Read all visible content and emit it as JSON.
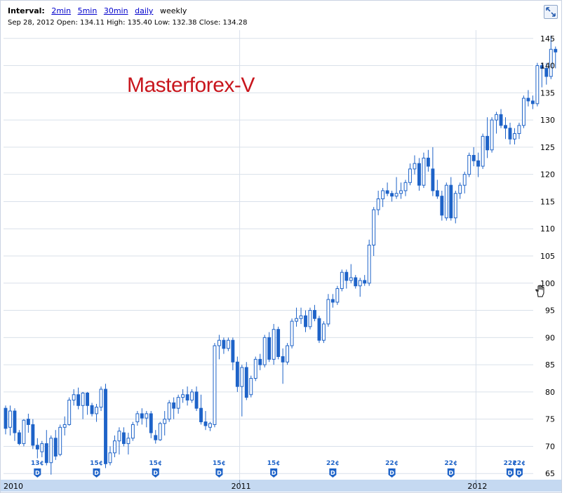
{
  "header": {
    "interval_label": "Interval:",
    "intervals": [
      "2min",
      "5min",
      "30min",
      "daily"
    ],
    "current_interval": "weekly",
    "ohlc_text": "Sep 28, 2012 Open: 134.11 High: 135.40 Low: 132.38 Close: 134.28"
  },
  "watermark": "Masterforex-V",
  "icons": {
    "expand": "expand-icon",
    "cursor": "hand-cursor-icon",
    "dividend": "dividend-marker-icon"
  },
  "colors": {
    "candle": "#1e63c8",
    "grid": "#d9e0ea",
    "watermark": "#c8161d",
    "axis_band": "#c5d9f1",
    "marker_text": "#1e63c8"
  },
  "chart_data": {
    "type": "candlestick",
    "title": "",
    "ylim": [
      64,
      146
    ],
    "y_ticks": [
      65,
      70,
      75,
      80,
      85,
      90,
      95,
      100,
      105,
      110,
      115,
      120,
      125,
      130,
      135,
      140,
      145
    ],
    "x_labels": [
      "2010",
      "2011",
      "2012"
    ],
    "dividend_markers": [
      {
        "label": "13¢",
        "week": 7
      },
      {
        "label": "15¢",
        "week": 20
      },
      {
        "label": "15¢",
        "week": 33
      },
      {
        "label": "15¢",
        "week": 47
      },
      {
        "label": "15¢",
        "week": 59
      },
      {
        "label": "22¢",
        "week": 72
      },
      {
        "label": "22¢",
        "week": 85
      },
      {
        "label": "22¢",
        "week": 98
      },
      {
        "label": "22¢",
        "week": 111
      },
      {
        "label": "22¢",
        "week": 113
      }
    ],
    "candles": [
      [
        77,
        77.5,
        72.2,
        73.3
      ],
      [
        73.5,
        77.5,
        72.0,
        76.5
      ],
      [
        76.5,
        77.0,
        71.0,
        72.5
      ],
      [
        72.5,
        73.0,
        70.2,
        70.5
      ],
      [
        70.5,
        75.0,
        70.0,
        74.8
      ],
      [
        75.0,
        76.0,
        72.5,
        74.0
      ],
      [
        74.0,
        75.0,
        69.5,
        70.2
      ],
      [
        70.2,
        71.5,
        67.8,
        69.5
      ],
      [
        69.0,
        71.0,
        68.0,
        70.5
      ],
      [
        70.5,
        73.0,
        66.5,
        67.0
      ],
      [
        67.0,
        72.0,
        64.8,
        71.5
      ],
      [
        71.5,
        73.0,
        67.5,
        68.2
      ],
      [
        68.5,
        74.0,
        68.2,
        73.5
      ],
      [
        73.5,
        75.5,
        72.0,
        74.0
      ],
      [
        74.0,
        79.0,
        73.8,
        78.5
      ],
      [
        78.5,
        80.5,
        77.5,
        79.5
      ],
      [
        79.5,
        80.8,
        76.8,
        77.5
      ],
      [
        77.5,
        80.0,
        75.0,
        79.8
      ],
      [
        79.8,
        80.0,
        75.8,
        77.5
      ],
      [
        77.5,
        78.0,
        75.5,
        76.0
      ],
      [
        76.0,
        77.8,
        74.5,
        77.2
      ],
      [
        77.2,
        81.0,
        76.5,
        80.5
      ],
      [
        80.5,
        81.5,
        66.0,
        66.8
      ],
      [
        67.0,
        70.0,
        66.5,
        68.8
      ],
      [
        68.8,
        72.0,
        68.0,
        71.0
      ],
      [
        71.0,
        73.5,
        68.5,
        72.8
      ],
      [
        72.5,
        73.5,
        70.0,
        70.5
      ],
      [
        70.5,
        72.5,
        68.5,
        71.5
      ],
      [
        71.5,
        74.5,
        71.0,
        74.0
      ],
      [
        74.5,
        76.5,
        73.8,
        76.0
      ],
      [
        76.0,
        77.0,
        74.0,
        75.2
      ],
      [
        75.2,
        76.5,
        73.5,
        76.0
      ],
      [
        76.0,
        76.5,
        71.5,
        72.5
      ],
      [
        72.0,
        73.0,
        70.5,
        71.2
      ],
      [
        71.2,
        74.5,
        71.0,
        74.2
      ],
      [
        74.2,
        76.5,
        72.0,
        75.0
      ],
      [
        75.0,
        78.5,
        74.5,
        78.0
      ],
      [
        78.0,
        79.0,
        75.0,
        77.0
      ],
      [
        77.0,
        79.5,
        76.0,
        79.0
      ],
      [
        79.0,
        80.5,
        78.0,
        79.5
      ],
      [
        79.5,
        81.0,
        77.5,
        78.5
      ],
      [
        78.5,
        80.5,
        78.0,
        80.0
      ],
      [
        80.0,
        81.0,
        76.5,
        77.0
      ],
      [
        77.0,
        79.5,
        74.0,
        74.5
      ],
      [
        74.5,
        76.5,
        73.0,
        73.8
      ],
      [
        73.5,
        74.5,
        72.8,
        74.2
      ],
      [
        74.0,
        89.0,
        73.5,
        88.5
      ],
      [
        88.5,
        90.5,
        86.0,
        89.5
      ],
      [
        89.5,
        90.0,
        87.0,
        88.0
      ],
      [
        88.0,
        90.0,
        87.5,
        89.5
      ],
      [
        89.5,
        90.0,
        84.0,
        85.5
      ],
      [
        85.5,
        86.5,
        80.0,
        81.0
      ],
      [
        81.0,
        85.0,
        75.5,
        84.5
      ],
      [
        84.5,
        85.5,
        78.5,
        79.0
      ],
      [
        79.5,
        83.0,
        79.0,
        82.5
      ],
      [
        82.5,
        86.5,
        82.0,
        86.0
      ],
      [
        86.0,
        87.0,
        84.0,
        85.0
      ],
      [
        85.0,
        90.5,
        84.5,
        90.0
      ],
      [
        90.0,
        91.0,
        85.5,
        86.0
      ],
      [
        86.0,
        92.5,
        85.0,
        91.5
      ],
      [
        91.5,
        92.0,
        86.0,
        86.5
      ],
      [
        86.5,
        88.0,
        81.5,
        85.5
      ],
      [
        85.5,
        89.0,
        85.0,
        88.5
      ],
      [
        88.5,
        93.5,
        88.0,
        93.0
      ],
      [
        93.0,
        95.5,
        92.0,
        93.5
      ],
      [
        93.5,
        95.5,
        92.5,
        94.0
      ],
      [
        94.0,
        95.0,
        91.0,
        92.0
      ],
      [
        92.0,
        95.5,
        91.5,
        95.0
      ],
      [
        95.0,
        96.0,
        93.0,
        93.5
      ],
      [
        93.5,
        94.0,
        89.0,
        89.5
      ],
      [
        89.5,
        93.0,
        89.0,
        92.5
      ],
      [
        92.5,
        98.0,
        92.0,
        97.0
      ],
      [
        97.0,
        98.0,
        95.5,
        96.5
      ],
      [
        96.5,
        99.5,
        96.0,
        99.0
      ],
      [
        99.0,
        102.5,
        98.5,
        102.0
      ],
      [
        102.0,
        102.5,
        99.0,
        100.5
      ],
      [
        100.5,
        103.5,
        100.0,
        101.0
      ],
      [
        101.0,
        101.5,
        99.0,
        99.5
      ],
      [
        99.5,
        101.0,
        97.5,
        100.5
      ],
      [
        100.5,
        101.5,
        99.5,
        100.0
      ],
      [
        100.0,
        108.0,
        99.5,
        107.0
      ],
      [
        107.0,
        114.0,
        105.0,
        113.5
      ],
      [
        113.5,
        117.0,
        112.5,
        115.5
      ],
      [
        115.5,
        117.5,
        114.0,
        117.0
      ],
      [
        117.0,
        118.5,
        116.0,
        116.5
      ],
      [
        116.5,
        117.0,
        115.0,
        116.0
      ],
      [
        116.0,
        119.5,
        115.5,
        116.5
      ],
      [
        116.5,
        118.5,
        115.5,
        117.0
      ],
      [
        117.0,
        119.0,
        116.0,
        118.5
      ],
      [
        118.5,
        122.0,
        118.0,
        121.0
      ],
      [
        121.0,
        123.5,
        120.0,
        122.0
      ],
      [
        122.0,
        123.0,
        117.0,
        118.0
      ],
      [
        118.0,
        124.0,
        117.5,
        123.0
      ],
      [
        123.0,
        124.5,
        120.5,
        121.5
      ],
      [
        121.0,
        125.0,
        116.0,
        117.0
      ],
      [
        117.0,
        119.0,
        115.5,
        116.0
      ],
      [
        116.0,
        117.0,
        111.5,
        112.5
      ],
      [
        112.0,
        118.5,
        111.5,
        118.0
      ],
      [
        118.0,
        119.5,
        111.5,
        112.0
      ],
      [
        112.0,
        117.0,
        111.0,
        116.5
      ],
      [
        116.5,
        118.5,
        115.5,
        118.0
      ],
      [
        118.0,
        120.5,
        116.5,
        120.0
      ],
      [
        120.0,
        124.0,
        119.5,
        123.5
      ],
      [
        123.5,
        125.0,
        121.5,
        122.5
      ],
      [
        122.5,
        124.0,
        119.5,
        121.5
      ],
      [
        121.5,
        127.5,
        121.0,
        127.0
      ],
      [
        127.0,
        130.5,
        123.0,
        124.5
      ],
      [
        124.5,
        130.5,
        124.0,
        130.0
      ],
      [
        130.0,
        131.5,
        127.5,
        131.0
      ],
      [
        131.0,
        132.0,
        128.5,
        129.0
      ],
      [
        129.0,
        130.5,
        126.5,
        128.5
      ],
      [
        128.5,
        129.5,
        125.5,
        126.5
      ],
      [
        126.5,
        128.5,
        125.5,
        127.5
      ],
      [
        127.5,
        129.5,
        126.5,
        129.0
      ],
      [
        129.0,
        134.5,
        128.5,
        134.0
      ],
      [
        134.0,
        135.5,
        132.5,
        133.5
      ],
      [
        133.5,
        134.5,
        132.0,
        133.0
      ],
      [
        133.0,
        140.5,
        132.5,
        140.0
      ],
      [
        140.0,
        140.5,
        136.0,
        139.5
      ],
      [
        139.5,
        140.5,
        136.5,
        138.0
      ],
      [
        138.0,
        145.5,
        137.5,
        143.0
      ],
      [
        143.0,
        143.5,
        139.5,
        142.5
      ]
    ]
  }
}
